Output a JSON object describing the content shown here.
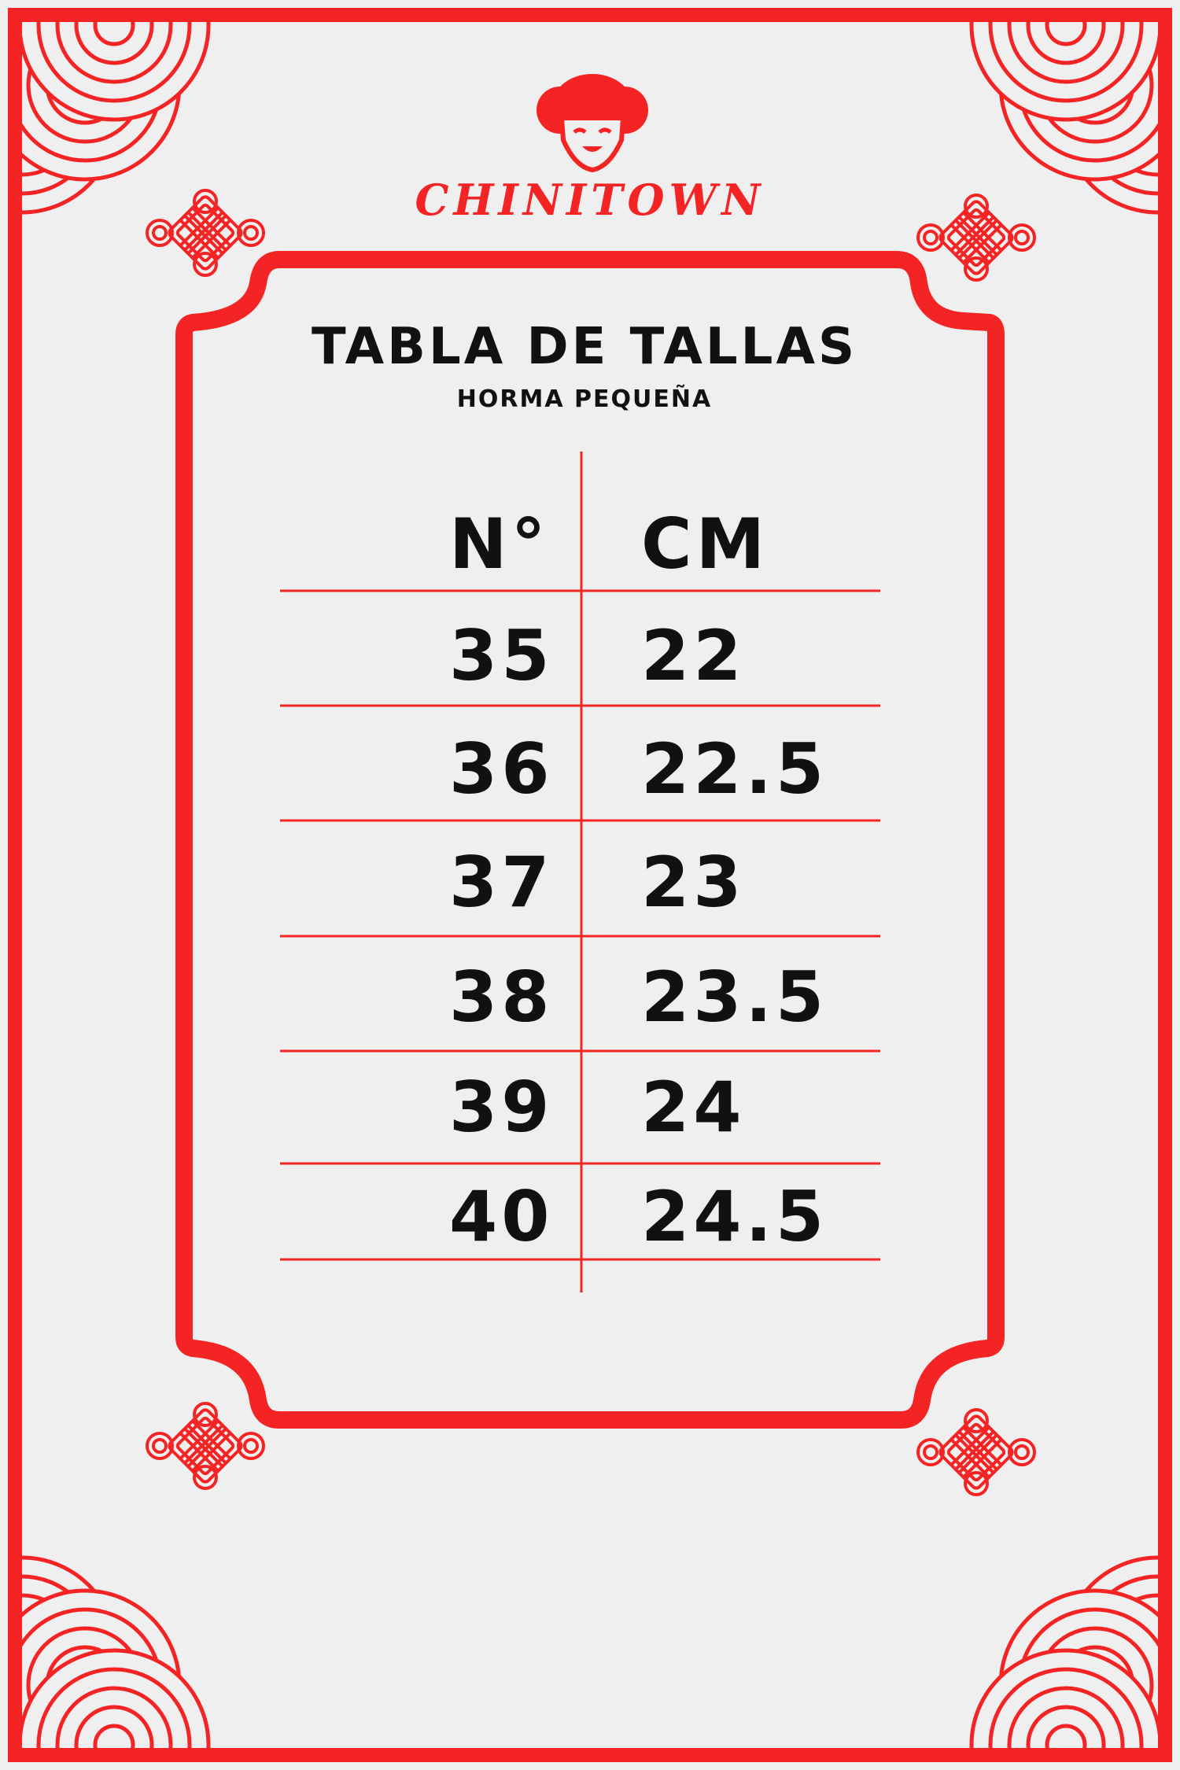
{
  "brand": {
    "name": "CHINITOWN",
    "logo_icon": "smiling-girl-face-icon"
  },
  "header": {
    "title": "TABLA DE TALLAS",
    "subtitle": "HORMA PEQUEÑA"
  },
  "table": {
    "columns": [
      "N°",
      "CM"
    ],
    "rows": [
      [
        "35",
        "22"
      ],
      [
        "36",
        "22.5"
      ],
      [
        "37",
        "23"
      ],
      [
        "38",
        "23.5"
      ],
      [
        "39",
        "24"
      ],
      [
        "40",
        "24.5"
      ]
    ]
  },
  "colors": {
    "accent": "#f52424",
    "background": "#efefef",
    "text": "#111111"
  }
}
